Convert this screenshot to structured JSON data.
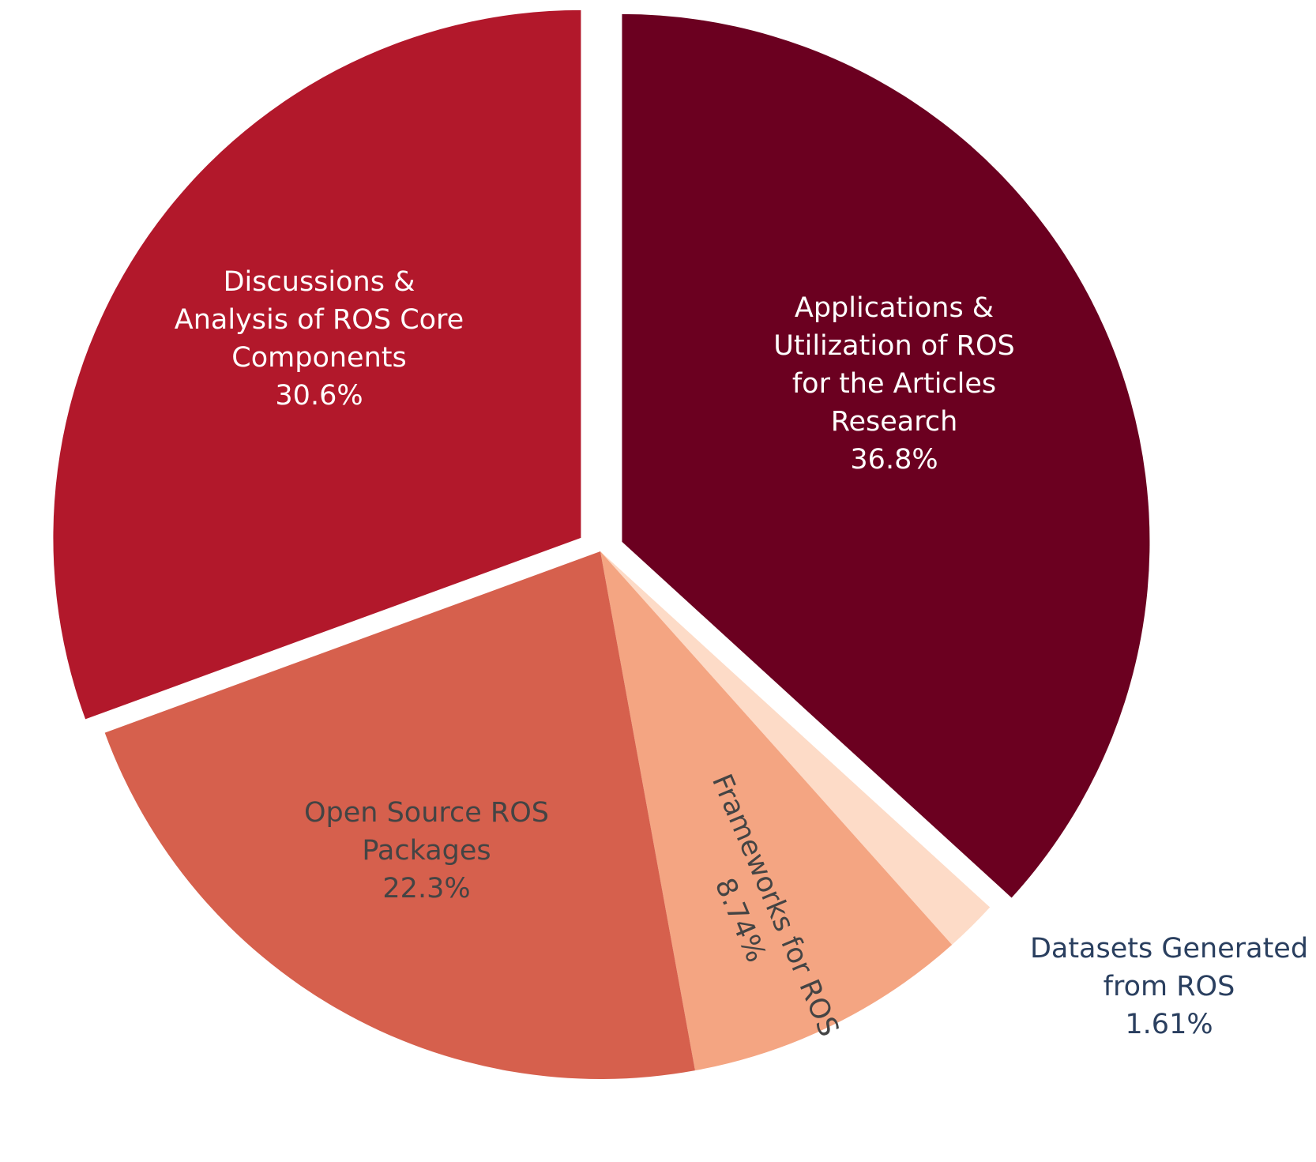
{
  "chart_data": {
    "type": "pie",
    "title": "",
    "slices": [
      {
        "key": "applications",
        "label": [
          "Applications &",
          "Utilization of ROS",
          "for the Articles",
          "Research"
        ],
        "value": 36.8,
        "value_label": "36.8%",
        "color": "#6b0020",
        "text_color": "#ffffff",
        "pulled": true
      },
      {
        "key": "datasets",
        "label": [
          "Datasets Generated",
          "from ROS"
        ],
        "value": 1.61,
        "value_label": "1.61%",
        "color": "#fddbc7",
        "text_color": "#2a3f5f",
        "pulled": false
      },
      {
        "key": "frameworks",
        "label": [
          "Frameworks for ROS"
        ],
        "value": 8.74,
        "value_label": "8.74%",
        "color": "#f4a582",
        "text_color": "#444444",
        "pulled": false
      },
      {
        "key": "open-source",
        "label": [
          "Open Source ROS",
          "Packages"
        ],
        "value": 22.3,
        "value_label": "22.3%",
        "color": "#d6604d",
        "text_color": "#444444",
        "pulled": false
      },
      {
        "key": "discussions",
        "label": [
          "Discussions &",
          "Analysis of ROS Core",
          "Components"
        ],
        "value": 30.6,
        "value_label": "30.6%",
        "color": "#b2182b",
        "text_color": "#ffffff",
        "pulled": true
      }
    ]
  }
}
